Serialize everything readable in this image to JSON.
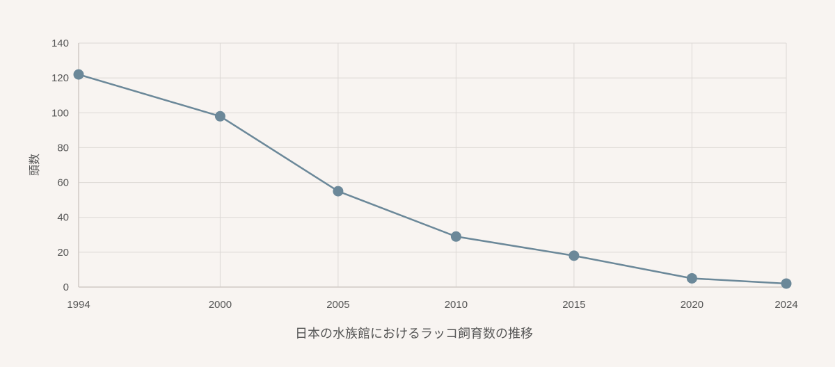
{
  "chart_data": {
    "type": "line",
    "title": "",
    "xlabel": "日本の水族館におけるラッコ飼育数の推移",
    "ylabel": "頭数",
    "x": [
      "1994",
      "2000",
      "2005",
      "2010",
      "2015",
      "2020",
      "2024"
    ],
    "x_ticks": [
      "1994",
      "2000",
      "2005",
      "2010",
      "2015",
      "2020",
      "2024"
    ],
    "y_ticks": [
      0,
      20,
      40,
      60,
      80,
      100,
      120,
      140
    ],
    "ylim": [
      0,
      140
    ],
    "grid": true,
    "legend": "none",
    "series": [
      {
        "values": [
          122,
          98,
          55,
          29,
          18,
          5,
          2
        ],
        "color": "#6b8899"
      }
    ]
  }
}
